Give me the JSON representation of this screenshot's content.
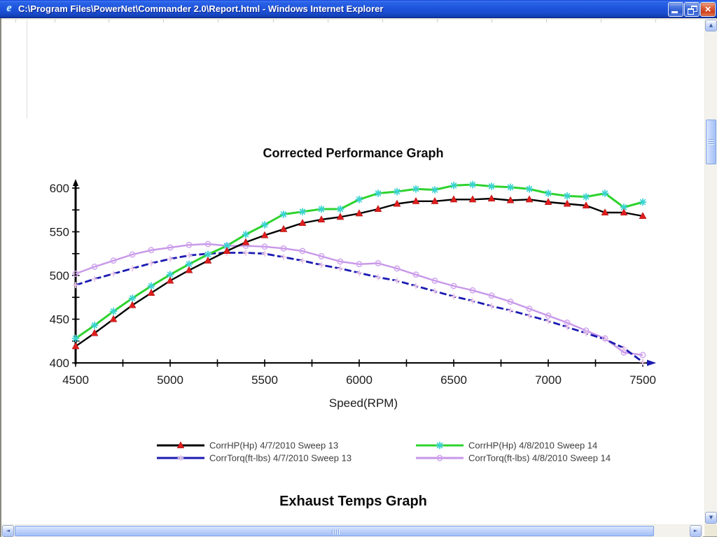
{
  "window": {
    "title": "C:\\Program Files\\PowerNet\\Commander 2.0\\Report.html - Windows Internet Explorer",
    "icons": {
      "logo": "e",
      "minimize": "minimize",
      "restore": "restore",
      "close": "×",
      "scroll_up": "▲",
      "scroll_down": "▼",
      "scroll_left": "◄",
      "scroll_right": "►"
    }
  },
  "page": {
    "heading_performance": "Corrected Performance Graph",
    "heading_exhaust": "Exhaust Temps Graph"
  },
  "chart_data": {
    "type": "line",
    "title": "Corrected Performance Graph",
    "xlabel": "Speed(RPM)",
    "ylabel": "",
    "xlim": [
      4500,
      7500
    ],
    "ylim": [
      400,
      600
    ],
    "x_tick_labels": [
      4500,
      5000,
      5500,
      6000,
      6500,
      7000,
      7500
    ],
    "x_minor_step": 250,
    "y_tick_labels": [
      400,
      450,
      500,
      550,
      600
    ],
    "y_minor_step": 25,
    "grid": false,
    "legend_position": "bottom",
    "x_start": 4500,
    "x_step": 100,
    "axis_color": "#000000",
    "axis_arrow_color": "#1a1ab2",
    "series": [
      {
        "name": "CorrHP(Hp) 4/7/2010 Sweep 13",
        "color": "#000000",
        "width": 2.4,
        "dash": "",
        "marker": "triangle",
        "marker_color": "#e01d1d",
        "values": [
          419,
          434,
          450,
          466,
          480,
          494,
          506,
          517,
          528,
          538,
          546,
          553,
          560,
          564,
          567,
          571,
          576,
          582,
          585,
          585,
          587,
          587,
          588,
          586,
          587,
          584,
          582,
          580,
          572,
          572,
          568
        ]
      },
      {
        "name": "CorrHP(Hp) 4/8/2010 Sweep 14",
        "color": "#2ed32e",
        "width": 3.0,
        "dash": "",
        "marker": "star",
        "marker_color": "#3ad2d2",
        "values": [
          428,
          443,
          459,
          474,
          488,
          501,
          513,
          524,
          534,
          547,
          558,
          570,
          573,
          576,
          576,
          587,
          594,
          596,
          599,
          598,
          603,
          604,
          602,
          601,
          599,
          594,
          591,
          590,
          594,
          578,
          584
        ]
      },
      {
        "name": "CorrTorq(ft-lbs) 4/7/2010 Sweep 13",
        "color": "#1a1ab2",
        "width": 2.8,
        "dash": "10,4",
        "marker": "plus",
        "marker_color": "#ecc9e8",
        "values": [
          489,
          496,
          502,
          508,
          514,
          519,
          523,
          525,
          526,
          526,
          525,
          521,
          517,
          512,
          508,
          503,
          498,
          494,
          488,
          482,
          476,
          471,
          465,
          460,
          454,
          448,
          441,
          434,
          427,
          417,
          401
        ]
      },
      {
        "name": "CorrTorq(ft-lbs) 4/8/2010 Sweep 14",
        "color": "#c897e8",
        "width": 2.4,
        "dash": "",
        "marker": "circle",
        "marker_color": "#cfa5ee",
        "values": [
          502,
          510,
          517,
          524,
          529,
          532,
          535,
          536,
          534,
          534,
          533,
          531,
          528,
          522,
          516,
          513,
          514,
          508,
          501,
          494,
          488,
          483,
          477,
          470,
          462,
          454,
          446,
          437,
          428,
          412,
          409
        ]
      }
    ]
  }
}
